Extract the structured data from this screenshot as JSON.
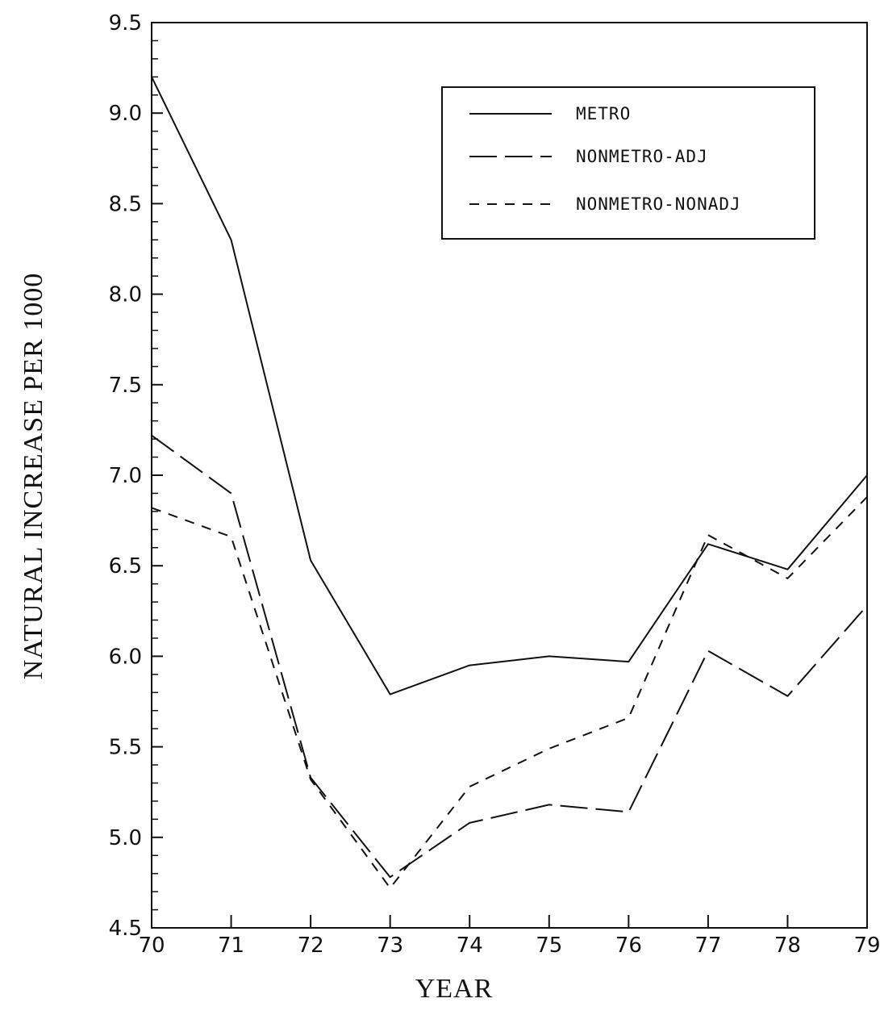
{
  "chart_data": {
    "type": "line",
    "title": "",
    "xlabel": "YEAR",
    "ylabel": "NATURAL INCREASE PER 1000",
    "x": [
      "70",
      "71",
      "72",
      "73",
      "74",
      "75",
      "76",
      "77",
      "78",
      "79"
    ],
    "xlim": [
      70,
      79
    ],
    "ylim": [
      4.5,
      9.5
    ],
    "yticks": [
      "4.5",
      "5.0",
      "5.5",
      "6.0",
      "6.5",
      "7.0",
      "7.5",
      "8.0",
      "8.5",
      "9.0",
      "9.5"
    ],
    "grid": false,
    "legend_position": "top-right",
    "series": [
      {
        "name": "METRO",
        "style": "solid",
        "color": "#111111",
        "values": [
          9.2,
          8.3,
          6.53,
          5.79,
          5.95,
          6.0,
          5.97,
          6.62,
          6.48,
          7.0
        ]
      },
      {
        "name": "NONMETRO-ADJ",
        "style": "longdash",
        "color": "#111111",
        "values": [
          7.22,
          6.9,
          5.33,
          4.78,
          5.08,
          5.18,
          5.14,
          6.03,
          5.78,
          6.28
        ]
      },
      {
        "name": "NONMETRO-NONADJ",
        "style": "shortdash",
        "color": "#111111",
        "values": [
          6.82,
          6.66,
          5.32,
          4.72,
          5.28,
          5.49,
          5.66,
          6.67,
          6.43,
          6.88
        ]
      }
    ]
  }
}
